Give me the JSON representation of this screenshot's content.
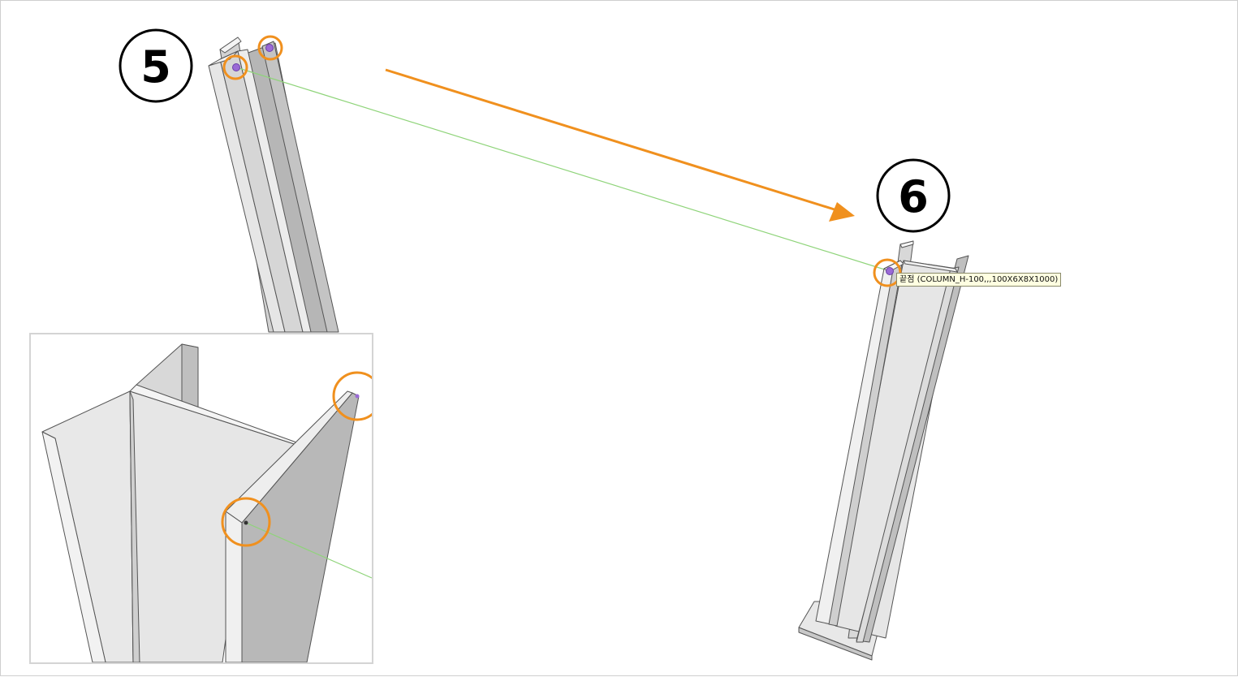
{
  "scene": {
    "step_start": "5",
    "step_end": "6",
    "snap_tooltip": "끝점 (COLUMN_H-100,,,100X6X8X1000)"
  },
  "colors": {
    "highlight_ring": "#f0901e",
    "direction_arrow": "#f0901e",
    "guide_line": "#8fd47a",
    "snap_point": "#9a6ad6",
    "steel_light": "#e6e6e6",
    "steel_mid": "#d2d2d2",
    "steel_dark": "#b6b6b6",
    "outline": "#555555"
  },
  "icons": {
    "snap_marker": "endpoint-snap-icon",
    "arrow": "direction-arrow-icon"
  }
}
